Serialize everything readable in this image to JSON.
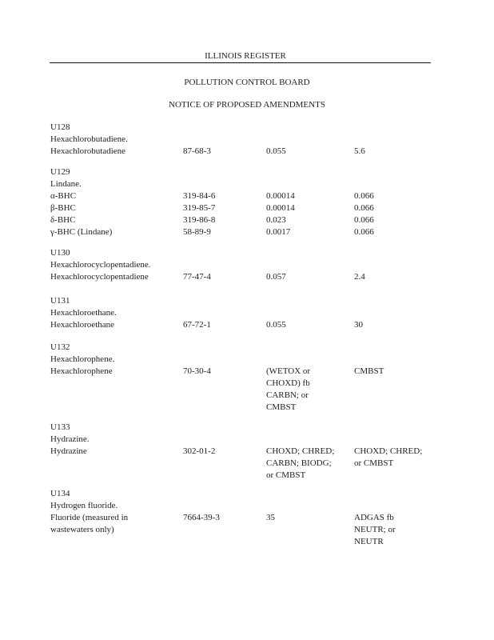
{
  "header": {
    "register": "ILLINOIS REGISTER",
    "board": "POLLUTION CONTROL BOARD",
    "notice": "NOTICE OF PROPOSED AMENDMENTS"
  },
  "groups": [
    {
      "code": "U128",
      "name": "Hexachlorobutadiene.",
      "rows": [
        {
          "name": [
            "Hexachlorobutadiene"
          ],
          "cas": [
            "87-68-3"
          ],
          "ww": [
            "0.055"
          ],
          "nww": [
            "5.6"
          ]
        }
      ]
    },
    {
      "code": "U129",
      "name": "Lindane.",
      "rows": [
        {
          "name": [
            "α-BHC"
          ],
          "cas": [
            "319-84-6"
          ],
          "ww": [
            "0.00014"
          ],
          "nww": [
            "0.066"
          ]
        },
        {
          "name": [
            "β-BHC"
          ],
          "cas": [
            "319-85-7"
          ],
          "ww": [
            "0.00014"
          ],
          "nww": [
            "0.066"
          ]
        },
        {
          "name": [
            "δ-BHC"
          ],
          "cas": [
            "319-86-8"
          ],
          "ww": [
            "0.023"
          ],
          "nww": [
            "0.066"
          ]
        },
        {
          "name": [
            "γ-BHC (Lindane)"
          ],
          "cas": [
            "58-89-9"
          ],
          "ww": [
            "0.0017"
          ],
          "nww": [
            "0.066"
          ]
        }
      ]
    },
    {
      "code": "U130",
      "name": "Hexachlorocyclopentadiene.",
      "rows": [
        {
          "name": [
            "Hexachlorocyclopentadiene"
          ],
          "cas": [
            "77-47-4"
          ],
          "ww": [
            "0.057"
          ],
          "nww": [
            "2.4"
          ]
        }
      ]
    },
    {
      "code": "U131",
      "name": "Hexachloroethane.",
      "rows": [
        {
          "name": [
            "Hexachloroethane"
          ],
          "cas": [
            "67-72-1"
          ],
          "ww": [
            "0.055"
          ],
          "nww": [
            "30"
          ]
        }
      ]
    },
    {
      "code": "U132",
      "name": "Hexachlorophene.",
      "rows": [
        {
          "name": [
            "Hexachlorophene"
          ],
          "cas": [
            "70-30-4"
          ],
          "ww": [
            "(WETOX or",
            "CHOXD) fb",
            "CARBN; or",
            "CMBST"
          ],
          "nww": [
            "CMBST"
          ]
        }
      ]
    },
    {
      "code": "U133",
      "name": "Hydrazine.",
      "rows": [
        {
          "name": [
            "Hydrazine"
          ],
          "cas": [
            "302-01-2"
          ],
          "ww": [
            "CHOXD; CHRED;",
            "CARBN; BIODG;",
            "or CMBST"
          ],
          "nww": [
            "CHOXD; CHRED;",
            "or CMBST"
          ]
        }
      ]
    },
    {
      "code": "U134",
      "name": "Hydrogen fluoride.",
      "rows": [
        {
          "name": [
            "Fluoride (measured in",
            "wastewaters only)"
          ],
          "cas": [
            "7664-39-3"
          ],
          "ww": [
            "35"
          ],
          "nww": [
            "ADGAS fb",
            "NEUTR; or",
            "NEUTR"
          ]
        }
      ]
    }
  ]
}
